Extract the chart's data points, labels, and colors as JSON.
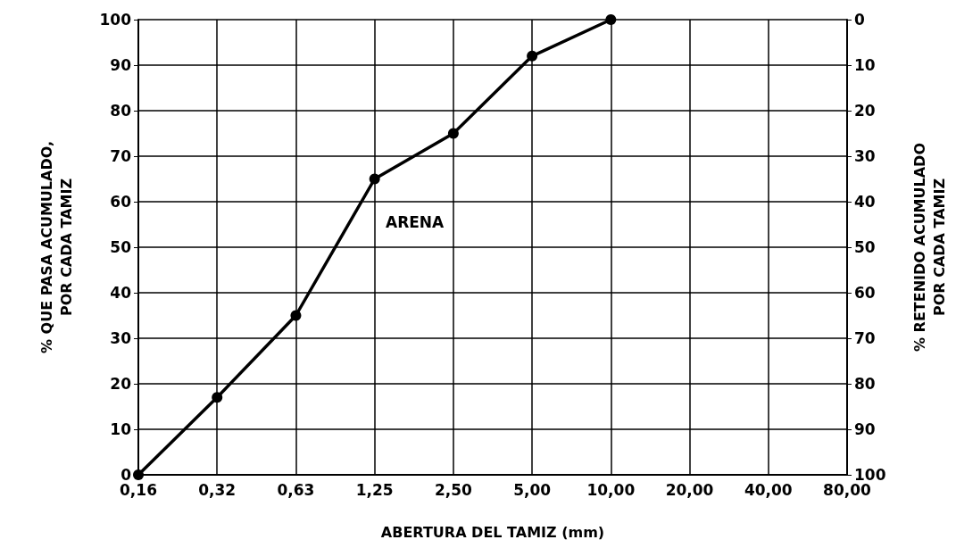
{
  "chart_data": {
    "type": "line",
    "xlabel": "ABERTURA DEL TAMIZ (mm)",
    "ylabel": "% QUE PASA ACUMULADO,\nPOR CADA TAMIZ",
    "y2label": "% RETENIDO ACUMULADO\nPOR CADA TAMIZ",
    "categories": [
      "0,16",
      "0,32",
      "0,63",
      "1,25",
      "2,50",
      "5,00",
      "10,00",
      "20,00",
      "40,00",
      "80,00"
    ],
    "series": [
      {
        "color": "#000000",
        "values": [
          0,
          17,
          35,
          65,
          75,
          92,
          100,
          null,
          null,
          null
        ]
      }
    ],
    "ylim": [
      0,
      100
    ],
    "yticks": [
      0,
      10,
      20,
      30,
      40,
      50,
      60,
      70,
      80,
      90,
      100
    ],
    "y2lim": [
      100,
      0
    ],
    "y2ticks": [
      0,
      10,
      20,
      30,
      40,
      50,
      60,
      70,
      80,
      90,
      100
    ],
    "annotations": [
      "ARENA"
    ],
    "grid": true,
    "marker": "circle",
    "line_style": "solid"
  }
}
